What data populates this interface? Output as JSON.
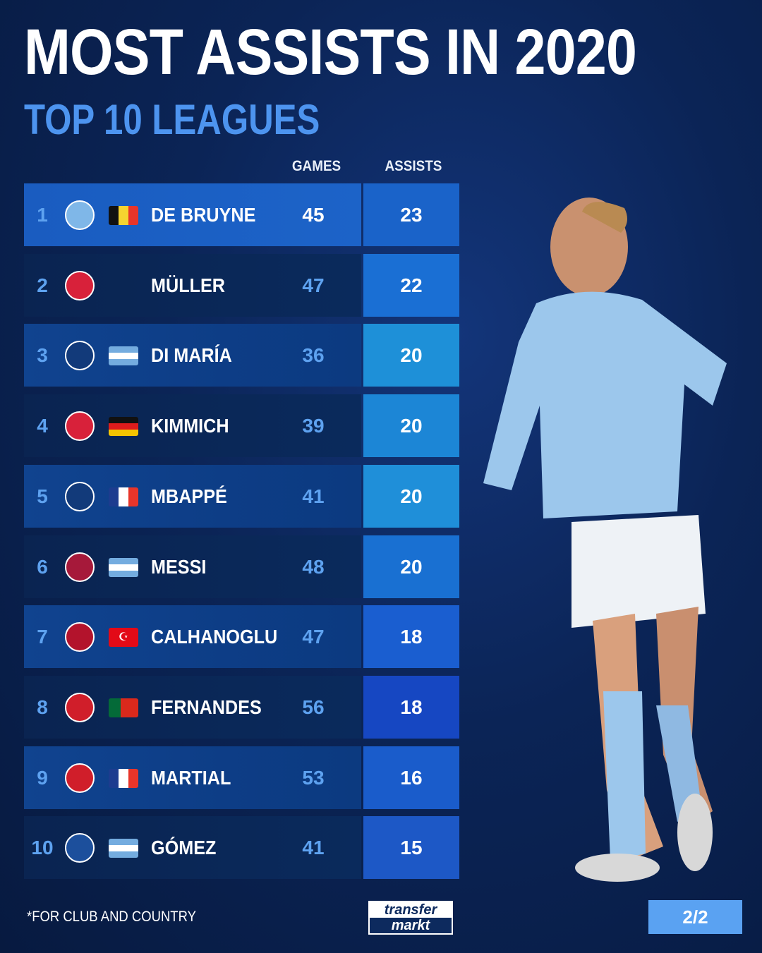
{
  "header": {
    "title": "MOST ASSISTS IN 2020",
    "subtitle": "TOP 10 LEAGUES"
  },
  "columns": {
    "games": "GAMES",
    "assists": "ASSISTS"
  },
  "rows": [
    {
      "rank": "1",
      "club": "manchester-city",
      "flag": "belgium",
      "name": "DE BRUYNE",
      "games": "45",
      "assists": "23"
    },
    {
      "rank": "2",
      "club": "bayern-munich",
      "flag": "",
      "name": "MÜLLER",
      "games": "47",
      "assists": "22"
    },
    {
      "rank": "3",
      "club": "paris-saint-germain",
      "flag": "argentina",
      "name": "DI MARÍA",
      "games": "36",
      "assists": "20"
    },
    {
      "rank": "4",
      "club": "bayern-munich",
      "flag": "germany",
      "name": "KIMMICH",
      "games": "39",
      "assists": "20"
    },
    {
      "rank": "5",
      "club": "paris-saint-germain",
      "flag": "france",
      "name": "MBAPPÉ",
      "games": "41",
      "assists": "20"
    },
    {
      "rank": "6",
      "club": "barcelona",
      "flag": "argentina",
      "name": "MESSI",
      "games": "48",
      "assists": "20"
    },
    {
      "rank": "7",
      "club": "ac-milan",
      "flag": "turkey",
      "name": "CALHANOGLU",
      "games": "47",
      "assists": "18"
    },
    {
      "rank": "8",
      "club": "sporting-cp-manchester-united",
      "flag": "portugal",
      "name": "FERNANDES",
      "games": "56",
      "assists": "18"
    },
    {
      "rank": "9",
      "club": "manchester-united",
      "flag": "france",
      "name": "MARTIAL",
      "games": "53",
      "assists": "16"
    },
    {
      "rank": "10",
      "club": "atalanta",
      "flag": "argentina",
      "name": "GÓMEZ",
      "games": "41",
      "assists": "15"
    }
  ],
  "footer": {
    "note": "*FOR CLUB AND COUNTRY",
    "logo_top": "transfer",
    "logo_bottom": "markt",
    "page": "2/2"
  },
  "colors": {
    "accent": "#4d94ef",
    "page_badge": "#5aa2f2"
  }
}
